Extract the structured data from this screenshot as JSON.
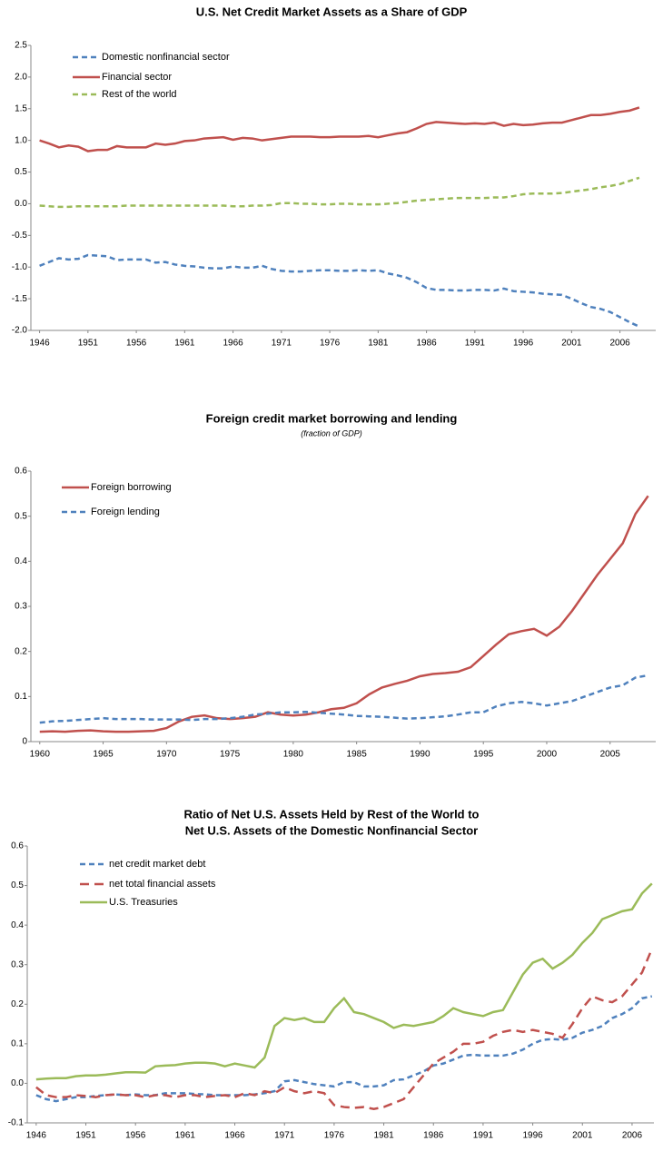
{
  "chart_data": [
    {
      "type": "line",
      "title": [
        "U.S. Net Credit Market Assets as a Share of GDP"
      ],
      "x": [
        1946,
        1947,
        1948,
        1949,
        1950,
        1951,
        1952,
        1953,
        1954,
        1955,
        1956,
        1957,
        1958,
        1959,
        1960,
        1961,
        1962,
        1963,
        1964,
        1965,
        1966,
        1967,
        1968,
        1969,
        1970,
        1971,
        1972,
        1973,
        1974,
        1975,
        1976,
        1977,
        1978,
        1979,
        1980,
        1981,
        1982,
        1983,
        1984,
        1985,
        1986,
        1987,
        1988,
        1989,
        1990,
        1991,
        1992,
        1993,
        1994,
        1995,
        1996,
        1997,
        1998,
        1999,
        2000,
        2001,
        2002,
        2003,
        2004,
        2005,
        2006,
        2007,
        2008
      ],
      "series": [
        {
          "name": "Domestic nonfinancial sector",
          "color": "#4f81bd",
          "style": "dashed",
          "values": [
            -0.98,
            -0.92,
            -0.86,
            -0.88,
            -0.87,
            -0.81,
            -0.82,
            -0.83,
            -0.89,
            -0.88,
            -0.88,
            -0.88,
            -0.93,
            -0.92,
            -0.96,
            -0.98,
            -0.99,
            -1.01,
            -1.02,
            -1.02,
            -0.99,
            -1.01,
            -1.01,
            -0.98,
            -1.03,
            -1.06,
            -1.07,
            -1.07,
            -1.06,
            -1.05,
            -1.05,
            -1.06,
            -1.06,
            -1.05,
            -1.06,
            -1.05,
            -1.1,
            -1.13,
            -1.17,
            -1.24,
            -1.33,
            -1.36,
            -1.36,
            -1.37,
            -1.37,
            -1.36,
            -1.36,
            -1.37,
            -1.34,
            -1.38,
            -1.39,
            -1.4,
            -1.42,
            -1.43,
            -1.44,
            -1.5,
            -1.57,
            -1.63,
            -1.66,
            -1.71,
            -1.79,
            -1.87,
            -1.94
          ]
        },
        {
          "name": "Financial sector",
          "color": "#c0504d",
          "style": "solid",
          "values": [
            1.0,
            0.95,
            0.89,
            0.92,
            0.9,
            0.83,
            0.85,
            0.85,
            0.91,
            0.89,
            0.89,
            0.89,
            0.95,
            0.93,
            0.95,
            0.99,
            1.0,
            1.03,
            1.04,
            1.05,
            1.01,
            1.04,
            1.03,
            1.0,
            1.02,
            1.04,
            1.06,
            1.06,
            1.06,
            1.05,
            1.05,
            1.06,
            1.06,
            1.06,
            1.07,
            1.05,
            1.08,
            1.11,
            1.13,
            1.19,
            1.26,
            1.29,
            1.28,
            1.27,
            1.26,
            1.27,
            1.26,
            1.28,
            1.23,
            1.26,
            1.24,
            1.25,
            1.27,
            1.28,
            1.28,
            1.32,
            1.36,
            1.4,
            1.4,
            1.42,
            1.45,
            1.47,
            1.52
          ]
        },
        {
          "name": "Rest of the world",
          "color": "#9bbb59",
          "style": "dashed",
          "values": [
            -0.03,
            -0.04,
            -0.05,
            -0.05,
            -0.04,
            -0.04,
            -0.04,
            -0.04,
            -0.04,
            -0.03,
            -0.03,
            -0.03,
            -0.03,
            -0.03,
            -0.03,
            -0.03,
            -0.03,
            -0.03,
            -0.03,
            -0.03,
            -0.04,
            -0.04,
            -0.03,
            -0.03,
            -0.02,
            0.01,
            0.01,
            0.0,
            0.0,
            -0.01,
            -0.01,
            0.0,
            0.0,
            -0.01,
            -0.01,
            -0.01,
            0.0,
            0.01,
            0.03,
            0.05,
            0.06,
            0.07,
            0.08,
            0.09,
            0.09,
            0.09,
            0.09,
            0.1,
            0.1,
            0.12,
            0.15,
            0.16,
            0.16,
            0.16,
            0.17,
            0.19,
            0.21,
            0.23,
            0.26,
            0.28,
            0.31,
            0.36,
            0.41
          ]
        }
      ],
      "xlim": [
        1945.1,
        2009.7
      ],
      "xticks": [
        1946,
        1951,
        1956,
        1961,
        1966,
        1971,
        1976,
        1981,
        1986,
        1991,
        1996,
        2001,
        2006
      ],
      "ylim": [
        -2.0,
        2.5
      ],
      "yticks": [
        {
          "value": -2.0,
          "label": "-2.0"
        },
        -1.5,
        {
          "value": -1.0,
          "label": "-1.0"
        },
        -0.5,
        {
          "value": 0.0,
          "label": "0.0"
        },
        0.5,
        {
          "value": 1.0,
          "label": "1.0"
        },
        1.5,
        {
          "value": 2.0,
          "label": "2.0"
        },
        2.5
      ],
      "grid": false,
      "legend": "upper-left"
    },
    {
      "type": "line",
      "title": [
        "Foreign credit market borrowing and lending"
      ],
      "subtitle": "(fraction of GDP)",
      "x": [
        1960,
        1961,
        1962,
        1963,
        1964,
        1965,
        1966,
        1967,
        1968,
        1969,
        1970,
        1971,
        1972,
        1973,
        1974,
        1975,
        1976,
        1977,
        1978,
        1979,
        1980,
        1981,
        1982,
        1983,
        1984,
        1985,
        1986,
        1987,
        1988,
        1989,
        1990,
        1991,
        1992,
        1993,
        1994,
        1995,
        1996,
        1997,
        1998,
        1999,
        2000,
        2001,
        2002,
        2003,
        2004,
        2005,
        2006,
        2007,
        2008
      ],
      "series": [
        {
          "name": "Foreign borrowing",
          "color": "#c0504d",
          "style": "solid",
          "values": [
            0.022,
            0.023,
            0.022,
            0.024,
            0.025,
            0.023,
            0.022,
            0.022,
            0.023,
            0.024,
            0.03,
            0.045,
            0.055,
            0.058,
            0.052,
            0.05,
            0.052,
            0.055,
            0.065,
            0.06,
            0.058,
            0.06,
            0.065,
            0.072,
            0.075,
            0.085,
            0.105,
            0.12,
            0.128,
            0.135,
            0.145,
            0.15,
            0.152,
            0.155,
            0.165,
            0.19,
            0.215,
            0.238,
            0.245,
            0.25,
            0.235,
            0.255,
            0.29,
            0.33,
            0.37,
            0.405,
            0.44,
            0.505,
            0.545
          ]
        },
        {
          "name": "Foreign lending",
          "color": "#4f81bd",
          "style": "dashed",
          "values": [
            0.042,
            0.045,
            0.046,
            0.048,
            0.05,
            0.052,
            0.05,
            0.05,
            0.05,
            0.049,
            0.049,
            0.049,
            0.048,
            0.05,
            0.05,
            0.052,
            0.055,
            0.06,
            0.062,
            0.065,
            0.065,
            0.066,
            0.064,
            0.062,
            0.06,
            0.057,
            0.056,
            0.055,
            0.053,
            0.051,
            0.052,
            0.054,
            0.056,
            0.06,
            0.065,
            0.065,
            0.078,
            0.085,
            0.088,
            0.085,
            0.08,
            0.085,
            0.09,
            0.1,
            0.11,
            0.12,
            0.125,
            0.142,
            0.147
          ]
        }
      ],
      "xlim": [
        1959.3,
        2008.6
      ],
      "xticks": [
        1960,
        1965,
        1970,
        1975,
        1980,
        1985,
        1990,
        1995,
        2000,
        2005
      ],
      "ylim": [
        0,
        0.6
      ],
      "yticks": [
        0,
        0.1,
        0.2,
        0.3,
        0.4,
        0.5,
        0.6
      ],
      "grid": false,
      "legend": "upper-left"
    },
    {
      "type": "line",
      "title": [
        "Ratio of Net U.S. Assets Held by Rest of the World to",
        "Net U.S. Assets of the Domestic Nonfinancial Sector"
      ],
      "x": [
        1946,
        1947,
        1948,
        1949,
        1950,
        1951,
        1952,
        1953,
        1954,
        1955,
        1956,
        1957,
        1958,
        1959,
        1960,
        1961,
        1962,
        1963,
        1964,
        1965,
        1966,
        1967,
        1968,
        1969,
        1970,
        1971,
        1972,
        1973,
        1974,
        1975,
        1976,
        1977,
        1978,
        1979,
        1980,
        1981,
        1982,
        1983,
        1984,
        1985,
        1986,
        1987,
        1988,
        1989,
        1990,
        1991,
        1992,
        1993,
        1994,
        1995,
        1996,
        1997,
        1998,
        1999,
        2000,
        2001,
        2002,
        2003,
        2004,
        2005,
        2006,
        2007,
        2008
      ],
      "series": [
        {
          "name": "net credit market debt",
          "color": "#4f81bd",
          "style": "dashed",
          "values": [
            -0.03,
            -0.04,
            -0.045,
            -0.04,
            -0.035,
            -0.035,
            -0.032,
            -0.03,
            -0.028,
            -0.03,
            -0.028,
            -0.03,
            -0.03,
            -0.025,
            -0.025,
            -0.025,
            -0.027,
            -0.028,
            -0.03,
            -0.03,
            -0.03,
            -0.03,
            -0.028,
            -0.025,
            -0.02,
            0.005,
            0.008,
            0.003,
            -0.002,
            -0.005,
            -0.008,
            0.003,
            0.003,
            -0.008,
            -0.008,
            -0.005,
            0.008,
            0.01,
            0.02,
            0.03,
            0.045,
            0.05,
            0.06,
            0.07,
            0.072,
            0.07,
            0.07,
            0.07,
            0.075,
            0.085,
            0.1,
            0.11,
            0.112,
            0.11,
            0.115,
            0.128,
            0.135,
            0.145,
            0.165,
            0.175,
            0.19,
            0.215,
            0.22
          ]
        },
        {
          "name": "net total financial assets",
          "color": "#c0504d",
          "style": "longdash",
          "values": [
            -0.01,
            -0.03,
            -0.035,
            -0.035,
            -0.03,
            -0.032,
            -0.035,
            -0.03,
            -0.028,
            -0.03,
            -0.03,
            -0.035,
            -0.03,
            -0.03,
            -0.035,
            -0.03,
            -0.03,
            -0.035,
            -0.032,
            -0.03,
            -0.035,
            -0.025,
            -0.03,
            -0.02,
            -0.025,
            -0.01,
            -0.02,
            -0.025,
            -0.02,
            -0.025,
            -0.055,
            -0.06,
            -0.062,
            -0.06,
            -0.065,
            -0.06,
            -0.05,
            -0.04,
            -0.01,
            0.02,
            0.05,
            0.065,
            0.08,
            0.1,
            0.1,
            0.105,
            0.12,
            0.13,
            0.135,
            0.13,
            0.135,
            0.13,
            0.125,
            0.115,
            0.15,
            0.19,
            0.22,
            0.21,
            0.205,
            0.22,
            0.25,
            0.28,
            0.34
          ]
        },
        {
          "name": "U.S. Treasuries",
          "color": "#9bbb59",
          "style": "solid",
          "values": [
            0.01,
            0.012,
            0.013,
            0.013,
            0.018,
            0.02,
            0.02,
            0.022,
            0.025,
            0.028,
            0.028,
            0.027,
            0.043,
            0.045,
            0.046,
            0.05,
            0.052,
            0.052,
            0.05,
            0.043,
            0.05,
            0.045,
            0.04,
            0.065,
            0.145,
            0.165,
            0.16,
            0.165,
            0.155,
            0.155,
            0.19,
            0.215,
            0.18,
            0.175,
            0.165,
            0.155,
            0.14,
            0.148,
            0.145,
            0.15,
            0.155,
            0.17,
            0.19,
            0.18,
            0.175,
            0.17,
            0.18,
            0.185,
            0.23,
            0.275,
            0.305,
            0.315,
            0.29,
            0.305,
            0.325,
            0.355,
            0.38,
            0.415,
            0.425,
            0.435,
            0.44,
            0.48,
            0.505
          ]
        }
      ],
      "xlim": [
        1945.1,
        2008.2
      ],
      "xticks": [
        1946,
        1951,
        1956,
        1961,
        1966,
        1971,
        1976,
        1981,
        1986,
        1991,
        1996,
        2001,
        2006
      ],
      "ylim": [
        -0.1,
        0.6
      ],
      "yticks": [
        -0.1,
        {
          "value": 0.0,
          "label": "0.0"
        },
        0.1,
        0.2,
        0.3,
        0.4,
        0.5,
        0.6
      ],
      "grid": false,
      "legend": "upper-left"
    }
  ]
}
